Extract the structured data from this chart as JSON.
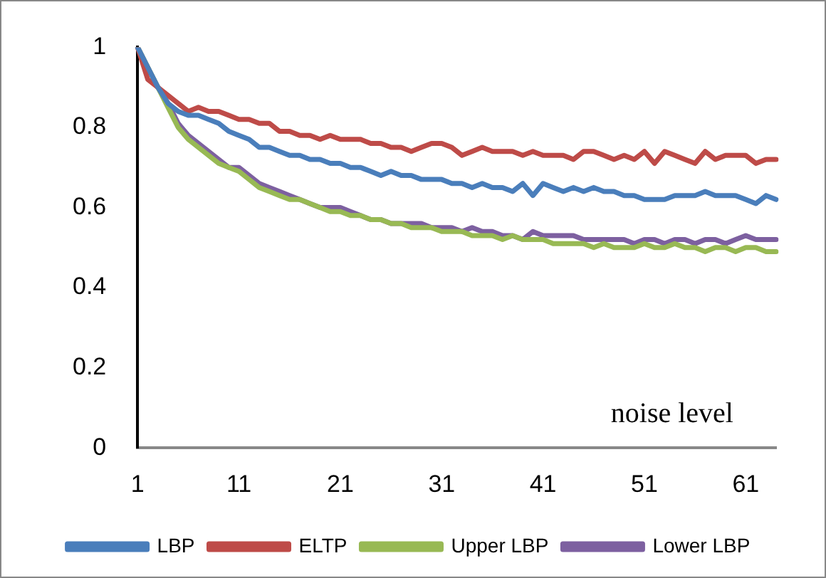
{
  "chart_data": {
    "type": "line",
    "annotations": [
      "noise level"
    ],
    "categories": [
      "1",
      null,
      null,
      null,
      null,
      null,
      null,
      null,
      null,
      null,
      "11",
      null,
      null,
      null,
      null,
      null,
      null,
      null,
      null,
      null,
      "21",
      null,
      null,
      null,
      null,
      null,
      null,
      null,
      null,
      null,
      "31",
      null,
      null,
      null,
      null,
      null,
      null,
      null,
      null,
      null,
      "41",
      null,
      null,
      null,
      null,
      null,
      null,
      null,
      null,
      null,
      "51",
      null,
      null,
      null,
      null,
      null,
      null,
      null,
      null,
      null,
      "61",
      null,
      null,
      null
    ],
    "series": [
      {
        "name": "LBP",
        "color": "#4a7ebb",
        "values": [
          1,
          0.95,
          0.9,
          0.86,
          0.84,
          0.83,
          0.83,
          0.82,
          0.81,
          0.79,
          0.78,
          0.77,
          0.75,
          0.75,
          0.74,
          0.73,
          0.73,
          0.72,
          0.72,
          0.71,
          0.71,
          0.7,
          0.7,
          0.69,
          0.68,
          0.69,
          0.68,
          0.68,
          0.67,
          0.67,
          0.67,
          0.66,
          0.66,
          0.65,
          0.66,
          0.65,
          0.65,
          0.64,
          0.66,
          0.63,
          0.66,
          0.65,
          0.64,
          0.65,
          0.64,
          0.65,
          0.64,
          0.64,
          0.63,
          0.63,
          0.62,
          0.62,
          0.62,
          0.63,
          0.63,
          0.63,
          0.64,
          0.63,
          0.63,
          0.63,
          0.62,
          0.61,
          0.63,
          0.62
        ]
      },
      {
        "name": "ELTP",
        "color": "#be4b48",
        "values": [
          1,
          0.92,
          0.9,
          0.88,
          0.86,
          0.84,
          0.85,
          0.84,
          0.84,
          0.83,
          0.82,
          0.82,
          0.81,
          0.81,
          0.79,
          0.79,
          0.78,
          0.78,
          0.77,
          0.78,
          0.77,
          0.77,
          0.77,
          0.76,
          0.76,
          0.75,
          0.75,
          0.74,
          0.75,
          0.76,
          0.76,
          0.75,
          0.73,
          0.74,
          0.75,
          0.74,
          0.74,
          0.74,
          0.73,
          0.74,
          0.73,
          0.73,
          0.73,
          0.72,
          0.74,
          0.74,
          0.73,
          0.72,
          0.73,
          0.72,
          0.74,
          0.71,
          0.74,
          0.73,
          0.72,
          0.71,
          0.74,
          0.72,
          0.73,
          0.73,
          0.73,
          0.71,
          0.72,
          0.72
        ]
      },
      {
        "name": "Upper LBP",
        "color": "#98b954",
        "values": [
          1,
          0.95,
          0.9,
          0.85,
          0.8,
          0.77,
          0.75,
          0.73,
          0.71,
          0.7,
          0.69,
          0.67,
          0.65,
          0.64,
          0.63,
          0.62,
          0.62,
          0.61,
          0.6,
          0.59,
          0.59,
          0.58,
          0.58,
          0.57,
          0.57,
          0.56,
          0.56,
          0.55,
          0.55,
          0.55,
          0.54,
          0.54,
          0.54,
          0.53,
          0.53,
          0.53,
          0.52,
          0.53,
          0.52,
          0.52,
          0.52,
          0.51,
          0.51,
          0.51,
          0.51,
          0.5,
          0.51,
          0.5,
          0.5,
          0.5,
          0.51,
          0.5,
          0.5,
          0.51,
          0.5,
          0.5,
          0.49,
          0.5,
          0.5,
          0.49,
          0.5,
          0.5,
          0.49,
          0.49
        ]
      },
      {
        "name": "Lower LBP",
        "color": "#7d60a0",
        "values": [
          1,
          0.95,
          0.9,
          0.86,
          0.81,
          0.78,
          0.76,
          0.74,
          0.72,
          0.7,
          0.7,
          0.68,
          0.66,
          0.65,
          0.64,
          0.63,
          0.62,
          0.61,
          0.6,
          0.6,
          0.6,
          0.59,
          0.58,
          0.57,
          0.57,
          0.56,
          0.56,
          0.56,
          0.56,
          0.55,
          0.55,
          0.55,
          0.54,
          0.55,
          0.54,
          0.54,
          0.53,
          0.53,
          0.52,
          0.54,
          0.53,
          0.53,
          0.53,
          0.53,
          0.52,
          0.52,
          0.52,
          0.52,
          0.52,
          0.51,
          0.52,
          0.52,
          0.51,
          0.52,
          0.52,
          0.51,
          0.52,
          0.52,
          0.51,
          0.52,
          0.53,
          0.52,
          0.52,
          0.52
        ]
      }
    ],
    "ylim": [
      0,
      1
    ],
    "yticks": [
      0,
      0.2,
      0.4,
      0.6,
      0.8,
      1
    ],
    "grid": false,
    "legend": "bottom",
    "marker": "none",
    "line_style": "solid"
  }
}
